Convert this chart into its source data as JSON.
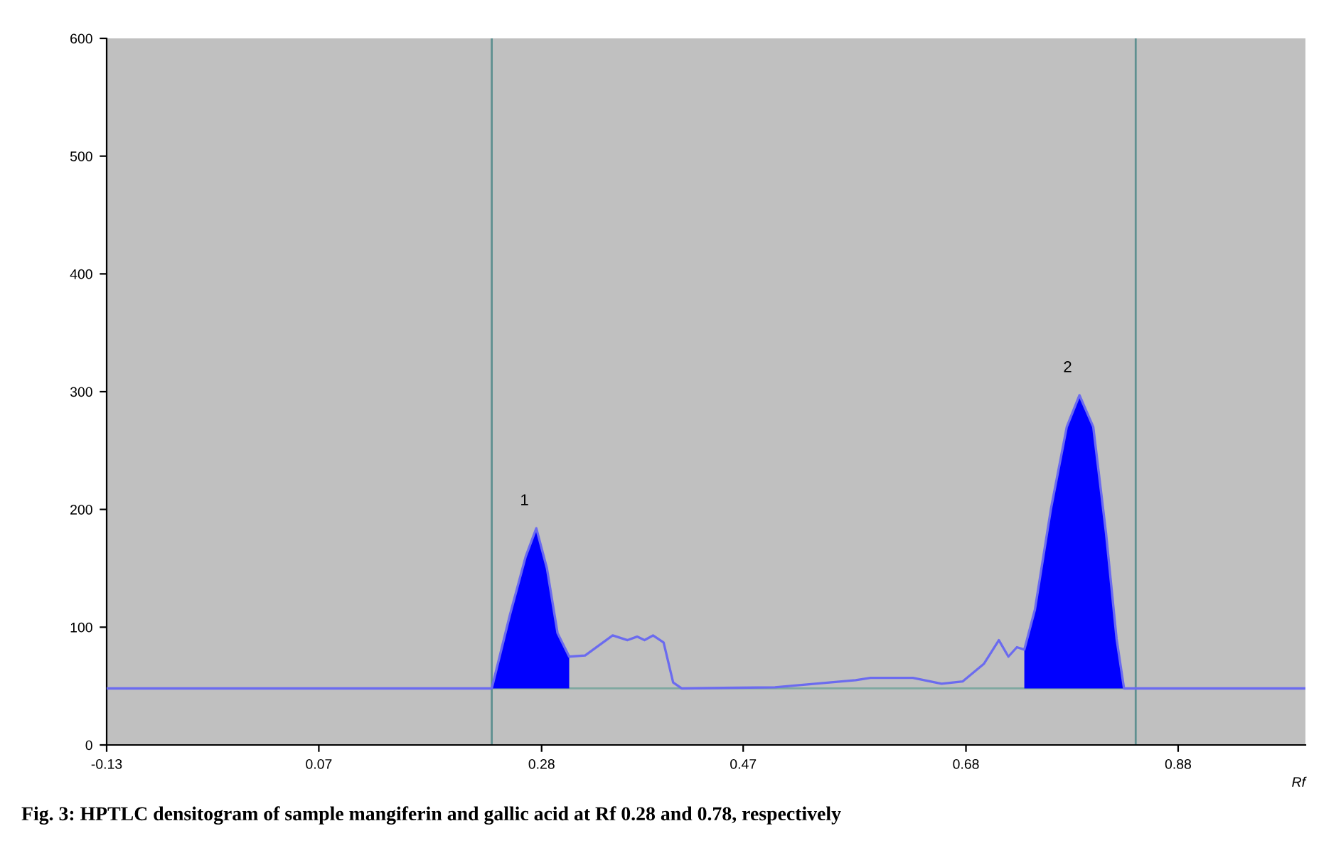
{
  "chart_data": {
    "type": "line",
    "xlabel": "Rf",
    "xlim": [
      -0.13,
      1.0
    ],
    "ylim": [
      0,
      600
    ],
    "xticks": [
      -0.13,
      0.07,
      0.28,
      0.47,
      0.68,
      0.88
    ],
    "yticks": [
      0,
      100,
      200,
      300,
      400,
      500,
      600
    ],
    "grid": false,
    "legend": false,
    "series": [
      {
        "color": "#6b6bef",
        "x": [
          -0.13,
          0.233,
          0.25,
          0.265,
          0.275,
          0.285,
          0.295,
          0.306,
          0.321,
          0.347,
          0.361,
          0.37,
          0.377,
          0.385,
          0.395,
          0.404,
          0.412,
          0.5,
          0.576,
          0.59,
          0.63,
          0.657,
          0.677,
          0.697,
          0.711,
          0.72,
          0.728,
          0.735,
          0.745,
          0.76,
          0.775,
          0.787,
          0.8,
          0.812,
          0.822,
          0.829,
          1.0
        ],
        "values": [
          48,
          48,
          110,
          160,
          184,
          150,
          95,
          75,
          76,
          93,
          89,
          92,
          89,
          93,
          87,
          53,
          48,
          49,
          55,
          57,
          57,
          52,
          54,
          69,
          89,
          75,
          83,
          81,
          115,
          200,
          270,
          297,
          270,
          180,
          90,
          48,
          48
        ]
      },
      {
        "type": "area",
        "color": "#0000ff",
        "x": [
          0.233,
          0.25,
          0.265,
          0.275,
          0.285,
          0.295,
          0.306
        ],
        "values": [
          48,
          110,
          160,
          184,
          150,
          95,
          75
        ]
      },
      {
        "type": "area",
        "color": "#0000ff",
        "x": [
          0.735,
          0.745,
          0.76,
          0.775,
          0.787,
          0.8,
          0.812,
          0.822,
          0.829
        ],
        "values": [
          81,
          115,
          200,
          270,
          297,
          270,
          180,
          90,
          48
        ]
      }
    ],
    "ref_lines": [
      {
        "axis": "x",
        "value": 0.233,
        "color": "#5f9090"
      },
      {
        "axis": "x",
        "value": 0.84,
        "color": "#5f9090"
      },
      {
        "axis": "y",
        "value": 48,
        "color": "#7fa8a0"
      }
    ],
    "annotations": [
      {
        "text": "1",
        "x": 0.275,
        "y": 184
      },
      {
        "text": "2",
        "x": 0.787,
        "y": 297
      },
      "Fig. 3: HPTLC densitogram of sample mangiferin and gallic acid at Rf 0.28 and 0.78, respectively"
    ]
  }
}
